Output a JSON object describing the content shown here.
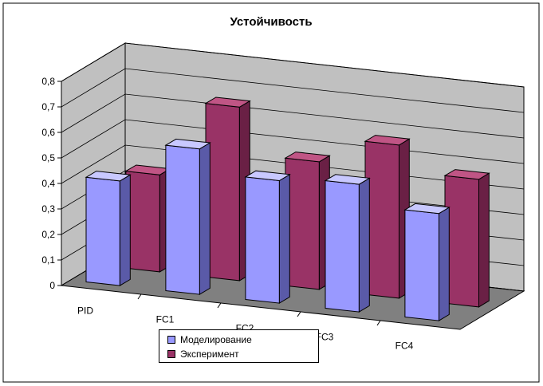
{
  "chart_data": {
    "type": "bar",
    "title": "Устойчивость",
    "categories": [
      "PID",
      "FC1",
      "FC2",
      "FC3",
      "FC4"
    ],
    "series": [
      {
        "name": "Моделирование",
        "values": [
          0.41,
          0.57,
          0.48,
          0.5,
          0.42
        ]
      },
      {
        "name": "Эксперимент",
        "values": [
          0.38,
          0.68,
          0.5,
          0.6,
          0.5
        ]
      }
    ],
    "ylim": [
      0,
      0.8
    ],
    "yticks": [
      "0",
      "0,1",
      "0,2",
      "0,3",
      "0,4",
      "0,5",
      "0,6",
      "0,7",
      "0,8"
    ],
    "grid": true,
    "legend_position": "bottom",
    "colors": {
      "series1_front": "#9999ff",
      "series1_side": "#5a5aa8",
      "series1_top": "#c8c8ff",
      "series2_front": "#993366",
      "series2_side": "#6a2045",
      "series2_top": "#c05585",
      "wall": "#c0c0c0",
      "floor": "#808080"
    }
  }
}
